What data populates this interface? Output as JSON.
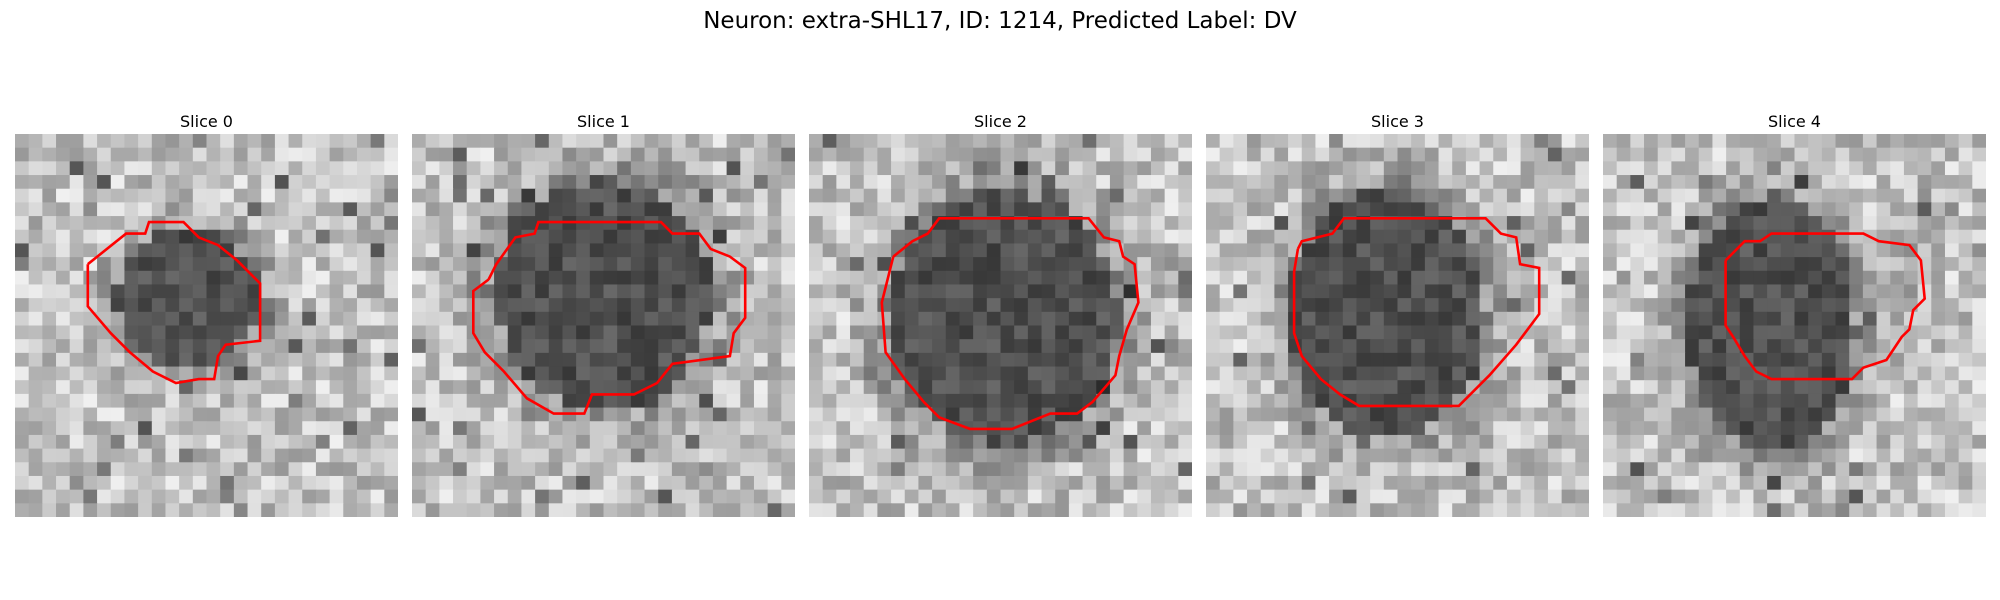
{
  "figure": {
    "title": "Neuron: extra-SHL17, ID: 1214, Predicted Label: DV"
  },
  "panels": [
    {
      "title": "Slice 0"
    },
    {
      "title": "Slice 1"
    },
    {
      "title": "Slice 2"
    },
    {
      "title": "Slice 3"
    },
    {
      "title": "Slice 4"
    }
  ],
  "colors": {
    "contour": "#ff0000",
    "background": "#ffffff"
  }
}
